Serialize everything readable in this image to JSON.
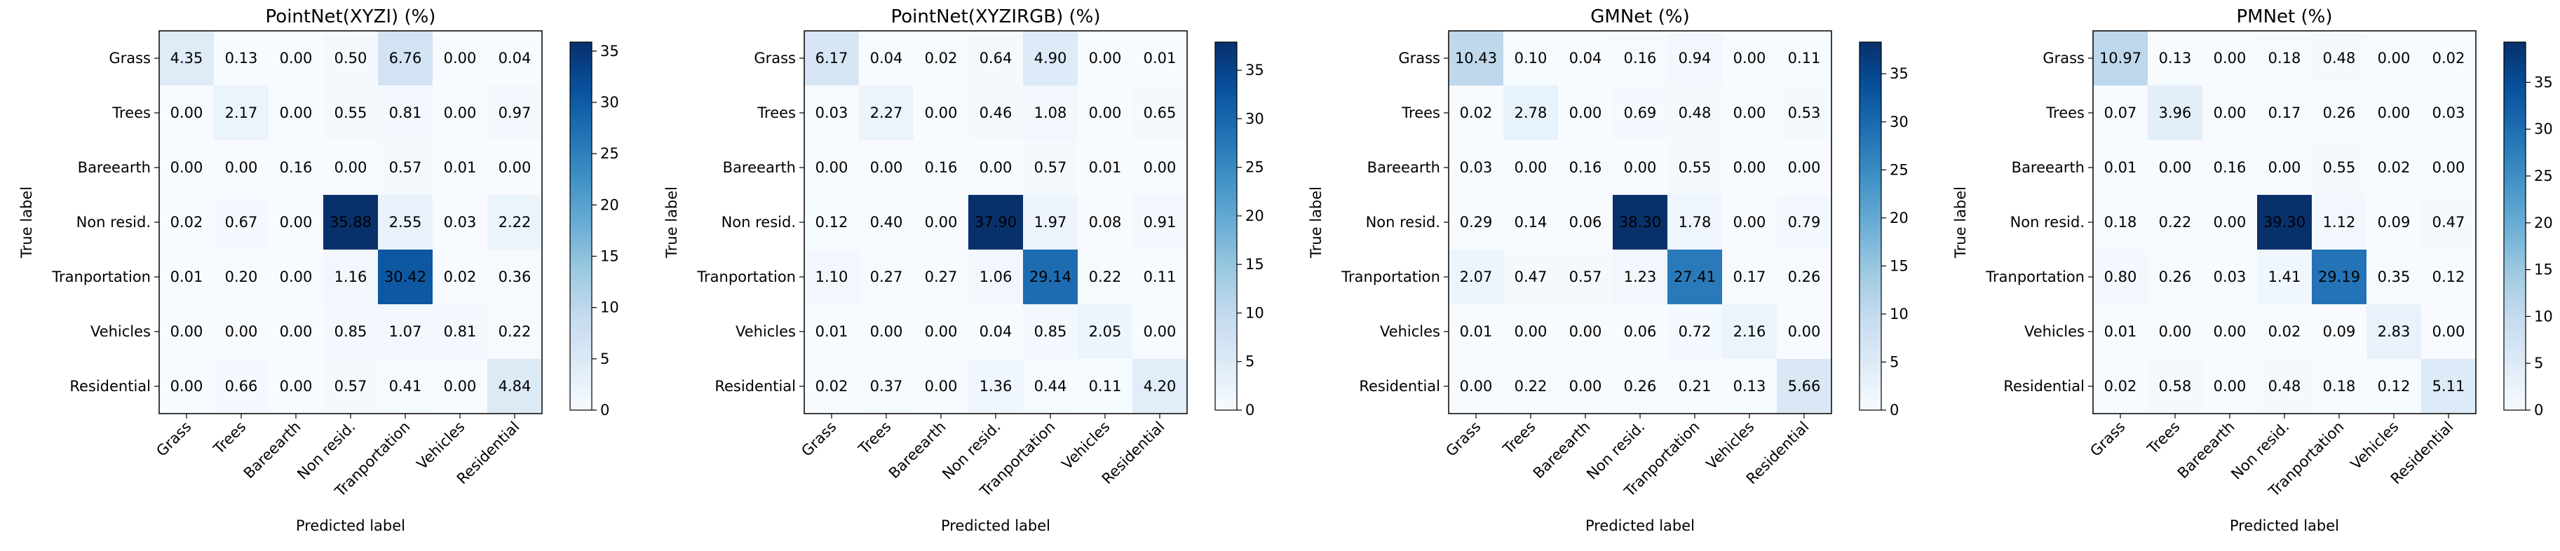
{
  "chart_data": [
    {
      "type": "heatmap",
      "title": "PointNet(XYZI) (%)",
      "xlabel": "Predicted label",
      "ylabel": "True label",
      "labels": [
        "Grass",
        "Trees",
        "Bareearth",
        "Non resid.",
        "Tranportation",
        "Vehicles",
        "Residential"
      ],
      "values": [
        [
          4.35,
          0.13,
          0.0,
          0.5,
          6.76,
          0.0,
          0.04
        ],
        [
          0.0,
          2.17,
          0.0,
          0.55,
          0.81,
          0.0,
          0.97
        ],
        [
          0.0,
          0.0,
          0.16,
          0.0,
          0.57,
          0.01,
          0.0
        ],
        [
          0.02,
          0.67,
          0.0,
          35.88,
          2.55,
          0.03,
          2.22
        ],
        [
          0.01,
          0.2,
          0.0,
          1.16,
          30.42,
          0.02,
          0.36
        ],
        [
          0.0,
          0.0,
          0.0,
          0.85,
          1.07,
          0.81,
          0.22
        ],
        [
          0.0,
          0.66,
          0.0,
          0.57,
          0.41,
          0.0,
          4.84
        ]
      ],
      "colorbar": {
        "min": 0,
        "max": 35.88,
        "ticks": [
          0,
          5,
          10,
          15,
          20,
          25,
          30,
          35
        ]
      }
    },
    {
      "type": "heatmap",
      "title": "PointNet(XYZIRGB) (%)",
      "xlabel": "Predicted label",
      "ylabel": "True label",
      "labels": [
        "Grass",
        "Trees",
        "Bareearth",
        "Non resid.",
        "Tranportation",
        "Vehicles",
        "Residential"
      ],
      "values": [
        [
          6.17,
          0.04,
          0.02,
          0.64,
          4.9,
          0.0,
          0.01
        ],
        [
          0.03,
          2.27,
          0.0,
          0.46,
          1.08,
          0.0,
          0.65
        ],
        [
          0.0,
          0.0,
          0.16,
          0.0,
          0.57,
          0.01,
          0.0
        ],
        [
          0.12,
          0.4,
          0.0,
          37.9,
          1.97,
          0.08,
          0.91
        ],
        [
          1.1,
          0.27,
          0.27,
          1.06,
          29.14,
          0.22,
          0.11
        ],
        [
          0.01,
          0.0,
          0.0,
          0.04,
          0.85,
          2.05,
          0.0
        ],
        [
          0.02,
          0.37,
          0.0,
          1.36,
          0.44,
          0.11,
          4.2
        ]
      ],
      "colorbar": {
        "min": 0,
        "max": 37.9,
        "ticks": [
          0,
          5,
          10,
          15,
          20,
          25,
          30,
          35
        ]
      }
    },
    {
      "type": "heatmap",
      "title": "GMNet (%)",
      "xlabel": "Predicted label",
      "ylabel": "True label",
      "labels": [
        "Grass",
        "Trees",
        "Bareearth",
        "Non resid.",
        "Tranportation",
        "Vehicles",
        "Residential"
      ],
      "values": [
        [
          10.43,
          0.1,
          0.04,
          0.16,
          0.94,
          0.0,
          0.11
        ],
        [
          0.02,
          2.78,
          0.0,
          0.69,
          0.48,
          0.0,
          0.53
        ],
        [
          0.03,
          0.0,
          0.16,
          0.0,
          0.55,
          0.0,
          0.0
        ],
        [
          0.29,
          0.14,
          0.06,
          38.3,
          1.78,
          0.0,
          0.79
        ],
        [
          2.07,
          0.47,
          0.57,
          1.23,
          27.41,
          0.17,
          0.26
        ],
        [
          0.01,
          0.0,
          0.0,
          0.06,
          0.72,
          2.16,
          0.0
        ],
        [
          0.0,
          0.22,
          0.0,
          0.26,
          0.21,
          0.13,
          5.66
        ]
      ],
      "colorbar": {
        "min": 0,
        "max": 38.3,
        "ticks": [
          0,
          5,
          10,
          15,
          20,
          25,
          30,
          35
        ]
      }
    },
    {
      "type": "heatmap",
      "title": "PMNet (%)",
      "xlabel": "Predicted label",
      "ylabel": "True label",
      "labels": [
        "Grass",
        "Trees",
        "Bareearth",
        "Non resid.",
        "Tranportation",
        "Vehicles",
        "Residential"
      ],
      "values": [
        [
          10.97,
          0.13,
          0.0,
          0.18,
          0.48,
          0.0,
          0.02
        ],
        [
          0.07,
          3.96,
          0.0,
          0.17,
          0.26,
          0.0,
          0.03
        ],
        [
          0.01,
          0.0,
          0.16,
          0.0,
          0.55,
          0.02,
          0.0
        ],
        [
          0.18,
          0.22,
          0.0,
          39.3,
          1.12,
          0.09,
          0.47
        ],
        [
          0.8,
          0.26,
          0.03,
          1.41,
          29.19,
          0.35,
          0.12
        ],
        [
          0.01,
          0.0,
          0.0,
          0.02,
          0.09,
          2.83,
          0.0
        ],
        [
          0.02,
          0.58,
          0.0,
          0.48,
          0.18,
          0.12,
          5.11
        ]
      ],
      "colorbar": {
        "min": 0,
        "max": 39.3,
        "ticks": [
          0,
          5,
          10,
          15,
          20,
          25,
          30,
          35
        ]
      }
    }
  ],
  "colors": {
    "low": "#f7fbff",
    "high": "#08306b"
  }
}
